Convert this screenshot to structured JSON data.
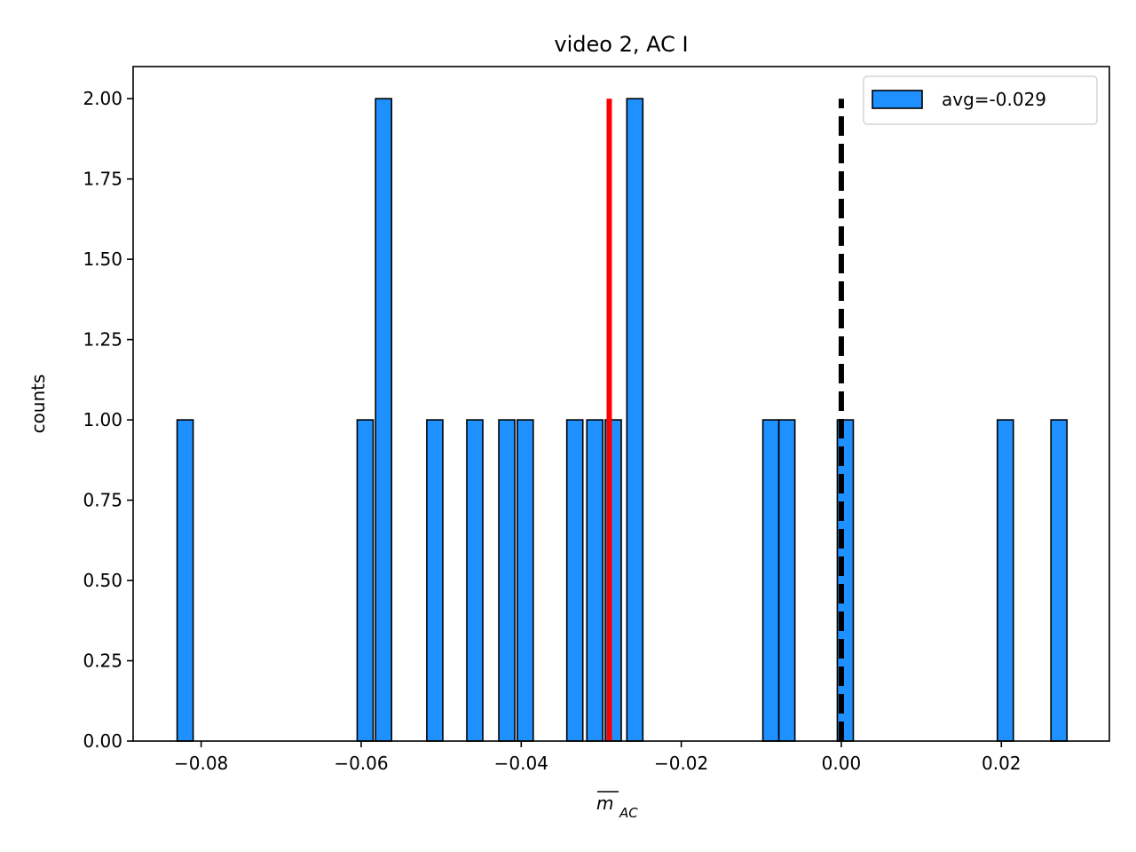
{
  "chart_data": {
    "type": "bar",
    "title": "video 2, AC I",
    "xlabel_main": "m",
    "xlabel_sub": "AC",
    "ylabel": "counts",
    "xlim": [
      -0.0885,
      0.0335
    ],
    "ylim": [
      0,
      2.1
    ],
    "bin_width": 0.002,
    "bar_color": "#1e90ff",
    "edge_color": "#000000",
    "bars": [
      {
        "left": -0.083,
        "count": 1
      },
      {
        "left": -0.0605,
        "count": 1
      },
      {
        "left": -0.0582,
        "count": 2
      },
      {
        "left": -0.0518,
        "count": 1
      },
      {
        "left": -0.0468,
        "count": 1
      },
      {
        "left": -0.0428,
        "count": 1
      },
      {
        "left": -0.0405,
        "count": 1
      },
      {
        "left": -0.0343,
        "count": 1
      },
      {
        "left": -0.0318,
        "count": 1
      },
      {
        "left": -0.0295,
        "count": 1
      },
      {
        "left": -0.0268,
        "count": 2
      },
      {
        "left": -0.0098,
        "count": 1
      },
      {
        "left": -0.0078,
        "count": 1
      },
      {
        "left": -0.0005,
        "count": 1
      },
      {
        "left": 0.0195,
        "count": 1
      },
      {
        "left": 0.0262,
        "count": 1
      }
    ],
    "mean_line": {
      "x": -0.029,
      "y_top": 2.0,
      "color": "#ff0000"
    },
    "zero_line": {
      "x": 0.0,
      "y_top": 2.0,
      "color": "#000000",
      "style": "dashed"
    },
    "legend": {
      "label": "avg=-0.029",
      "placement": "upper right"
    },
    "x_ticks": [
      {
        "value": -0.08,
        "label": "−0.08"
      },
      {
        "value": -0.06,
        "label": "−0.06"
      },
      {
        "value": -0.04,
        "label": "−0.04"
      },
      {
        "value": -0.02,
        "label": "−0.02"
      },
      {
        "value": 0.0,
        "label": "0.00"
      },
      {
        "value": 0.02,
        "label": "0.02"
      }
    ],
    "y_ticks": [
      {
        "value": 0.0,
        "label": "0.00"
      },
      {
        "value": 0.25,
        "label": "0.25"
      },
      {
        "value": 0.5,
        "label": "0.50"
      },
      {
        "value": 0.75,
        "label": "0.75"
      },
      {
        "value": 1.0,
        "label": "1.00"
      },
      {
        "value": 1.25,
        "label": "1.25"
      },
      {
        "value": 1.5,
        "label": "1.50"
      },
      {
        "value": 1.75,
        "label": "1.75"
      },
      {
        "value": 2.0,
        "label": "2.00"
      }
    ],
    "grid": false
  }
}
